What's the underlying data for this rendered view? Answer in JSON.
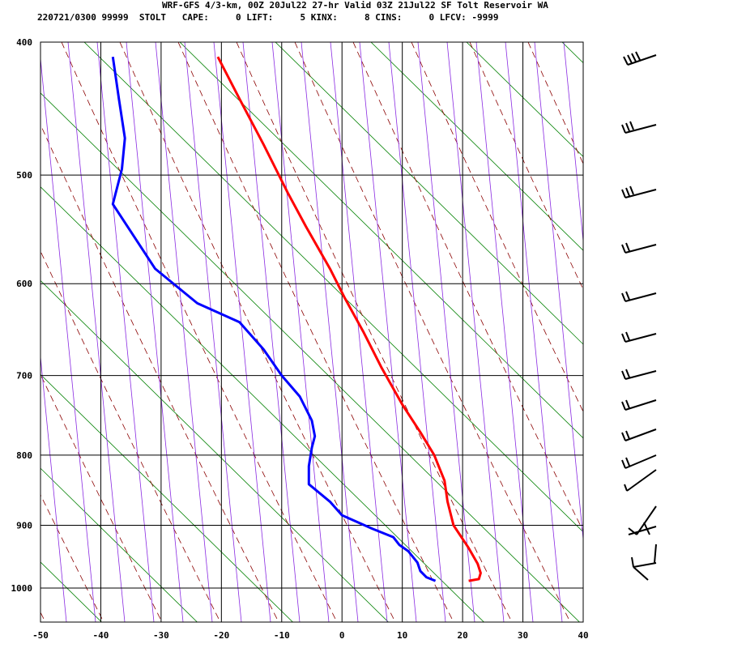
{
  "header": {
    "title": "WRF-GFS 4/3-km, 00Z 20Jul22 27-hr Valid 03Z 21Jul22 SF Tolt Reservoir WA",
    "info": "220721/0300 99999  STOLT   CAPE:     0 LIFT:     5 KINX:     8 CINS:     0 LFCV: -9999"
  },
  "chart_data": {
    "type": "line",
    "title": "WRF-GFS 4/3-km, 00Z 20Jul22 27-hr Valid 03Z 21Jul22 SF Tolt Reservoir WA",
    "subtitle": "220721/0300 99999  STOLT   CAPE:     0 LIFT:     5 KINX:     8 CINS:     0 LFCV: -9999",
    "xlabel": "",
    "ylabel": "",
    "xlim": [
      -50,
      40
    ],
    "ylim": [
      1040,
      400
    ],
    "yscale": "log",
    "grid": true,
    "x_ticks": [
      -50,
      -40,
      -30,
      -20,
      -10,
      0,
      10,
      20,
      30,
      40
    ],
    "y_ticks": [
      400,
      500,
      600,
      700,
      800,
      900,
      1000
    ],
    "background_lines": {
      "dry_adiabats": {
        "color": "#008000"
      },
      "moist_adiabats": {
        "color": "#8b0000"
      },
      "mixing_ratio": {
        "color": "#8a2be2"
      }
    },
    "series": [
      {
        "color": "#ff0000",
        "points": [
          [
            -20.6,
            410
          ],
          [
            -17,
            440
          ],
          [
            -13,
            475
          ],
          [
            -9,
            515
          ],
          [
            -6,
            545
          ],
          [
            -2,
            585
          ],
          [
            0.5,
            615
          ],
          [
            3.5,
            650
          ],
          [
            6.5,
            690
          ],
          [
            10,
            735
          ],
          [
            13,
            770
          ],
          [
            15.3,
            800
          ],
          [
            17,
            835
          ],
          [
            17.5,
            865
          ],
          [
            18.5,
            900
          ],
          [
            21,
            935
          ],
          [
            22.5,
            960
          ],
          [
            23,
            975
          ],
          [
            22.7,
            985
          ],
          [
            21,
            988
          ]
        ]
      },
      {
        "color": "#0000ff",
        "points": [
          [
            -38,
            410
          ],
          [
            -37,
            440
          ],
          [
            -36,
            470
          ],
          [
            -36.5,
            495
          ],
          [
            -38,
            525
          ],
          [
            -35,
            550
          ],
          [
            -31,
            585
          ],
          [
            -24,
            620
          ],
          [
            -17,
            640
          ],
          [
            -13,
            670
          ],
          [
            -10,
            700
          ],
          [
            -7,
            725
          ],
          [
            -5,
            755
          ],
          [
            -4.5,
            775
          ],
          [
            -5,
            790
          ],
          [
            -5.5,
            815
          ],
          [
            -5.5,
            840
          ],
          [
            -2,
            865
          ],
          [
            0,
            885
          ],
          [
            5,
            905
          ],
          [
            8.5,
            918
          ],
          [
            9.5,
            930
          ],
          [
            11,
            940
          ],
          [
            12.5,
            958
          ],
          [
            13,
            972
          ],
          [
            14,
            982
          ],
          [
            15.5,
            988
          ]
        ]
      }
    ]
  }
}
